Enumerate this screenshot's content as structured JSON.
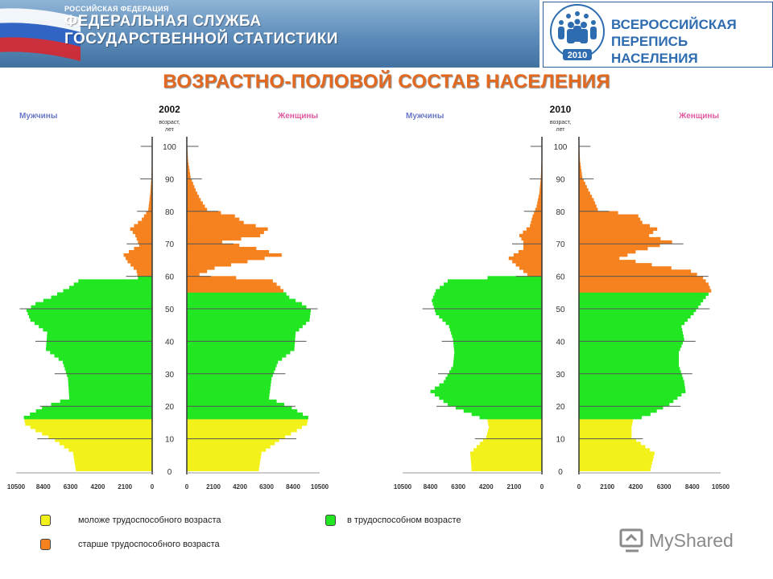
{
  "header": {
    "agency_line1": "РОССИЙСКАЯ ФЕДЕРАЦИЯ",
    "agency_line2": "ФЕДЕРАЛЬНАЯ СЛУЖБА",
    "agency_line3": "ГОСУДАРСТВЕННОЙ СТАТИСТИКИ",
    "census_line1": "ВСЕРОССИЙСКАЯ",
    "census_line2": "ПЕРЕПИСЬ НАСЕЛЕНИЯ",
    "census_year": "2010"
  },
  "page_title": "ВОЗРАСТНО-ПОЛОВОЙ СОСТАВ НАСЕЛЕНИЯ",
  "colors": {
    "young": "#f2f21a",
    "working": "#22e622",
    "old": "#f5821f",
    "title": "#e2691f",
    "banner": "#41729f"
  },
  "legend": [
    {
      "key": "young",
      "label": "моложе трудоспособного возраста"
    },
    {
      "key": "working",
      "label": "в трудоспособном возрасте"
    },
    {
      "key": "old",
      "label": "старше трудоспособного возраста"
    }
  ],
  "watermark": "MyShared",
  "chart_data": [
    {
      "type": "bar",
      "title": "2002",
      "left_label": "Мужчины",
      "right_label": "Женщины",
      "age_axis_label": "возраст, лет",
      "age_ticks": [
        0,
        10,
        20,
        30,
        40,
        50,
        60,
        70,
        80,
        90,
        100
      ],
      "x_ticks": [
        10500,
        8400,
        6300,
        4200,
        2100,
        0
      ],
      "xlim": [
        0,
        10500
      ],
      "ylim": [
        0,
        100
      ],
      "male_thresholds": {
        "young_below": 16,
        "old_from": 60
      },
      "female_thresholds": {
        "young_below": 16,
        "old_from": 55
      },
      "male_points": [
        [
          0,
          5900
        ],
        [
          5,
          6100
        ],
        [
          9,
          7500
        ],
        [
          12,
          9000
        ],
        [
          14,
          9800
        ],
        [
          16,
          9900
        ],
        [
          19,
          8500
        ],
        [
          22,
          6400
        ],
        [
          28,
          6500
        ],
        [
          33,
          6900
        ],
        [
          37,
          8200
        ],
        [
          42,
          8100
        ],
        [
          46,
          9400
        ],
        [
          49,
          9700
        ],
        [
          51,
          9000
        ],
        [
          53,
          7800
        ],
        [
          56,
          6400
        ],
        [
          58,
          5700
        ],
        [
          59,
          1100
        ],
        [
          61,
          1200
        ],
        [
          64,
          1900
        ],
        [
          66,
          2200
        ],
        [
          69,
          1000
        ],
        [
          72,
          1300
        ],
        [
          74,
          1700
        ],
        [
          77,
          800
        ],
        [
          80,
          300
        ],
        [
          85,
          150
        ],
        [
          90,
          60
        ],
        [
          95,
          30
        ],
        [
          100,
          10
        ]
      ],
      "female_points": [
        [
          0,
          5700
        ],
        [
          5,
          5900
        ],
        [
          9,
          7300
        ],
        [
          12,
          8700
        ],
        [
          14,
          9500
        ],
        [
          16,
          9600
        ],
        [
          19,
          8300
        ],
        [
          22,
          6500
        ],
        [
          28,
          6700
        ],
        [
          33,
          7200
        ],
        [
          37,
          8500
        ],
        [
          42,
          8600
        ],
        [
          46,
          9700
        ],
        [
          49,
          9800
        ],
        [
          51,
          9100
        ],
        [
          53,
          8100
        ],
        [
          56,
          7400
        ],
        [
          58,
          6800
        ],
        [
          60,
          1000
        ],
        [
          62,
          2200
        ],
        [
          64,
          4800
        ],
        [
          66,
          7500
        ],
        [
          68,
          5500
        ],
        [
          70,
          2800
        ],
        [
          72,
          5800
        ],
        [
          74,
          6400
        ],
        [
          76,
          4500
        ],
        [
          78,
          3800
        ],
        [
          80,
          1600
        ],
        [
          83,
          1100
        ],
        [
          86,
          700
        ],
        [
          90,
          300
        ],
        [
          95,
          100
        ],
        [
          100,
          30
        ]
      ]
    },
    {
      "type": "bar",
      "title": "2010",
      "left_label": "Мужчины",
      "right_label": "Женщины",
      "age_axis_label": "возраст, лет",
      "age_ticks": [
        0,
        10,
        20,
        30,
        40,
        50,
        60,
        70,
        80,
        90,
        100
      ],
      "x_ticks": [
        10500,
        8400,
        6300,
        4200,
        2100,
        0
      ],
      "xlim": [
        0,
        10500
      ],
      "ylim": [
        0,
        100
      ],
      "male_thresholds": {
        "young_below": 16,
        "old_from": 60
      },
      "female_thresholds": {
        "young_below": 16,
        "old_from": 55
      },
      "male_points": [
        [
          0,
          5300
        ],
        [
          5,
          5400
        ],
        [
          10,
          4200
        ],
        [
          13,
          4000
        ],
        [
          15,
          4100
        ],
        [
          17,
          5300
        ],
        [
          20,
          7100
        ],
        [
          24,
          8400
        ],
        [
          27,
          7400
        ],
        [
          32,
          6700
        ],
        [
          36,
          6600
        ],
        [
          40,
          6700
        ],
        [
          44,
          7000
        ],
        [
          48,
          8000
        ],
        [
          52,
          8300
        ],
        [
          55,
          8000
        ],
        [
          58,
          7100
        ],
        [
          60,
          1100
        ],
        [
          62,
          1700
        ],
        [
          65,
          2500
        ],
        [
          68,
          1400
        ],
        [
          70,
          1400
        ],
        [
          72,
          1700
        ],
        [
          75,
          900
        ],
        [
          78,
          700
        ],
        [
          81,
          400
        ],
        [
          85,
          200
        ],
        [
          90,
          80
        ],
        [
          95,
          30
        ],
        [
          100,
          10
        ]
      ],
      "female_points": [
        [
          0,
          5300
        ],
        [
          5,
          5600
        ],
        [
          10,
          3900
        ],
        [
          13,
          3900
        ],
        [
          15,
          4000
        ],
        [
          17,
          5300
        ],
        [
          20,
          6700
        ],
        [
          24,
          7900
        ],
        [
          27,
          7800
        ],
        [
          32,
          7400
        ],
        [
          36,
          7400
        ],
        [
          40,
          7800
        ],
        [
          44,
          7600
        ],
        [
          48,
          8500
        ],
        [
          52,
          9200
        ],
        [
          55,
          9800
        ],
        [
          57,
          9600
        ],
        [
          59,
          9200
        ],
        [
          61,
          8300
        ],
        [
          63,
          5400
        ],
        [
          65,
          3000
        ],
        [
          67,
          4200
        ],
        [
          70,
          6900
        ],
        [
          72,
          5200
        ],
        [
          74,
          5800
        ],
        [
          76,
          4700
        ],
        [
          78,
          4400
        ],
        [
          80,
          1400
        ],
        [
          83,
          1100
        ],
        [
          86,
          700
        ],
        [
          90,
          250
        ],
        [
          95,
          80
        ],
        [
          100,
          20
        ]
      ]
    }
  ]
}
